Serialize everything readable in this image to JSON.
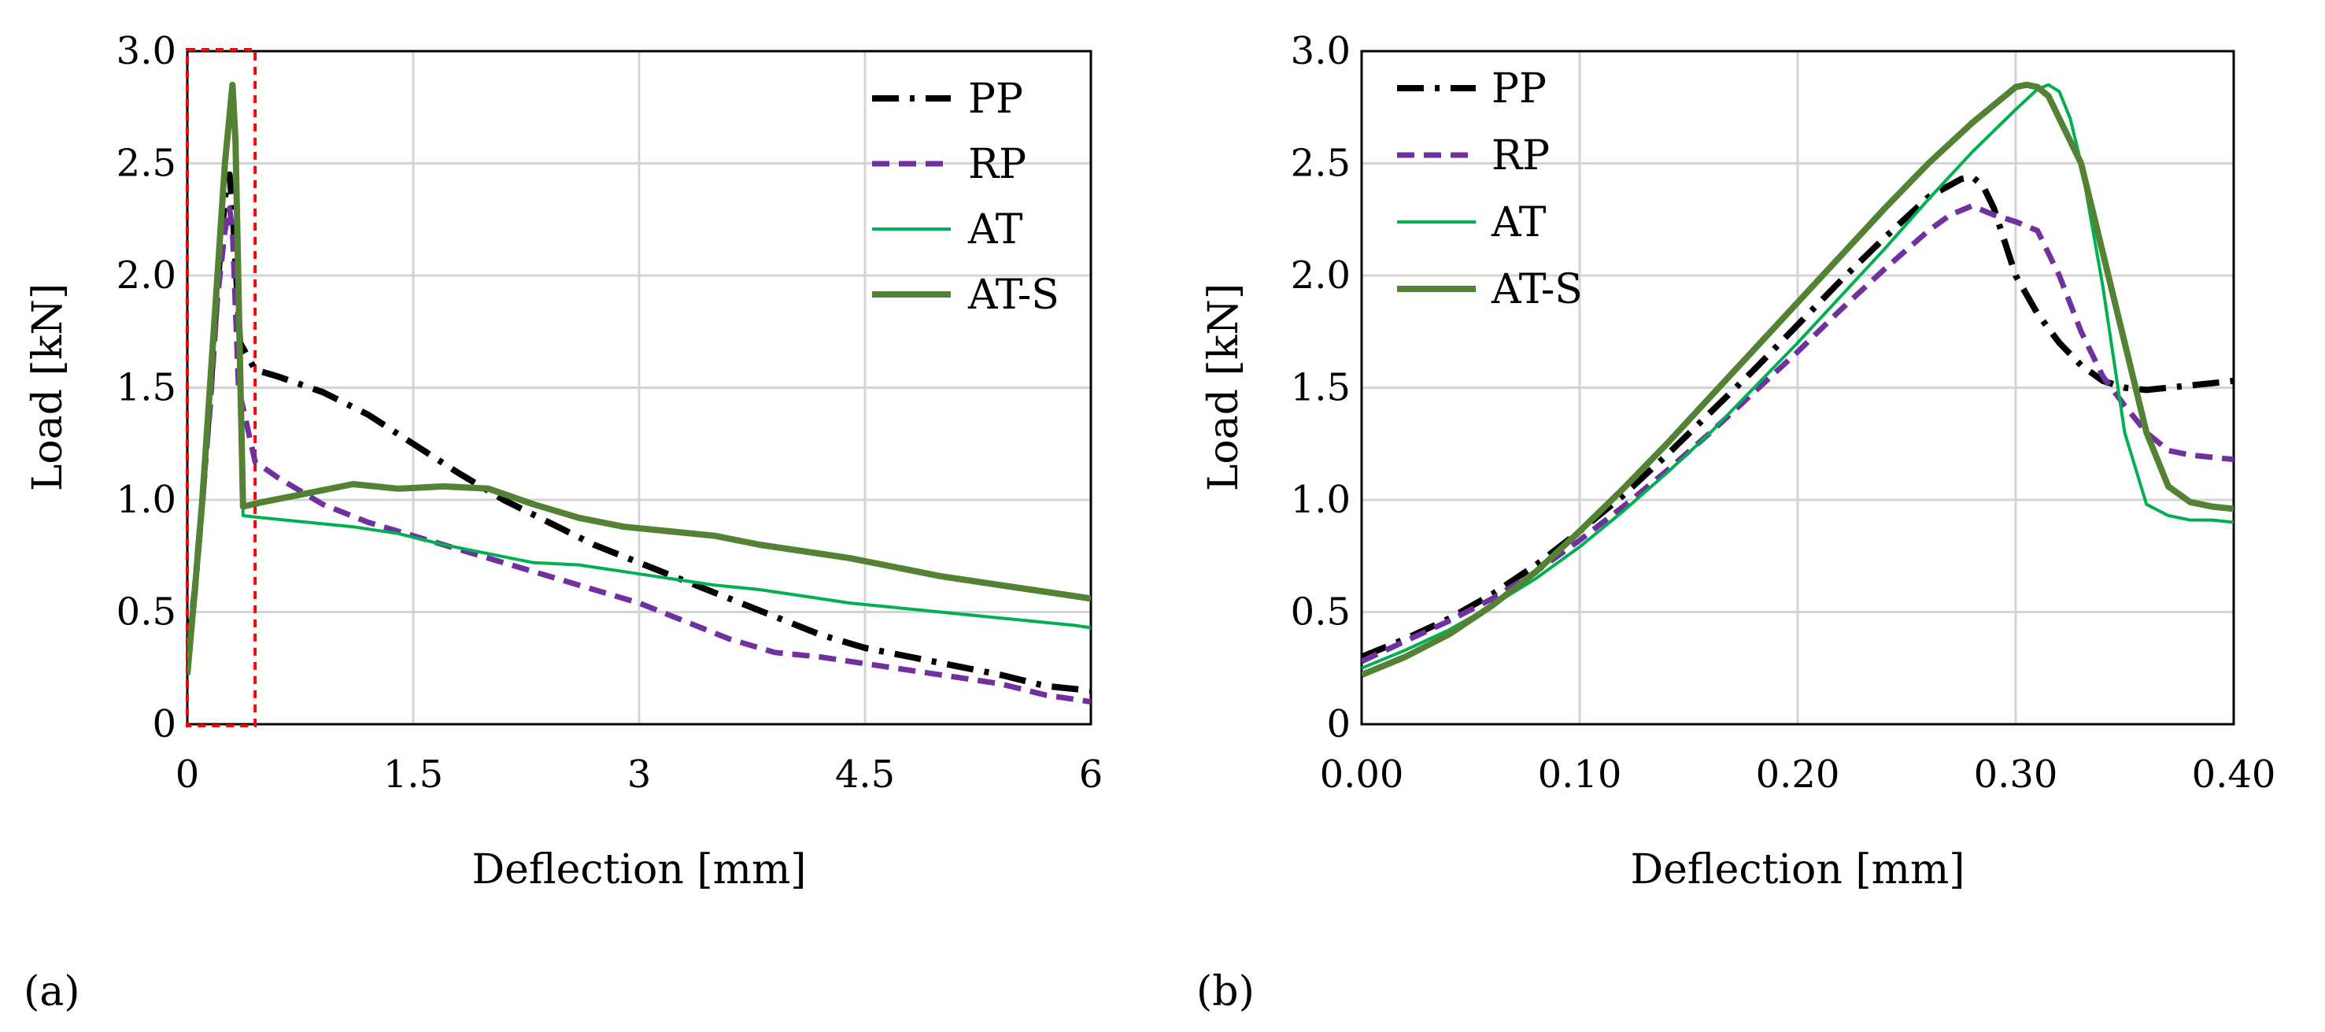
{
  "colors": {
    "PP": "#000000",
    "RP": "#7030a0",
    "AT": "#00b050",
    "AT-S": "#548235",
    "highlight": "#ff0000"
  },
  "chart_data": [
    {
      "type": "line",
      "panel_label": "(a)",
      "xlabel": "Deflection [mm]",
      "ylabel": "Load [kN]",
      "xlim": [
        0,
        6
      ],
      "ylim": [
        0,
        3
      ],
      "xticks": [
        0,
        1.5,
        3,
        4.5,
        6
      ],
      "xtick_labels": [
        "0",
        "1.5",
        "3",
        "4.5",
        "6"
      ],
      "yticks": [
        0,
        0.5,
        1,
        1.5,
        2,
        2.5,
        3
      ],
      "ytick_labels": [
        "0",
        "0.5",
        "1.0",
        "1.5",
        "2.0",
        "2.5",
        "3.0"
      ],
      "grid": true,
      "legend_position": "top-right",
      "highlight_box": {
        "x": [
          0,
          0.45
        ],
        "y": [
          0,
          3
        ]
      },
      "series": [
        {
          "name": "PP",
          "style": "dashdot",
          "x": [
            0,
            0.05,
            0.1,
            0.15,
            0.2,
            0.25,
            0.28,
            0.3,
            0.35,
            0.45,
            0.6,
            0.9,
            1.2,
            1.5,
            1.8,
            2.1,
            2.4,
            2.7,
            3.0,
            3.3,
            3.6,
            3.9,
            4.2,
            4.5,
            4.8,
            5.1,
            5.4,
            5.7,
            6.0
          ],
          "y": [
            0.28,
            0.6,
            1.0,
            1.45,
            1.95,
            2.35,
            2.45,
            2.3,
            1.7,
            1.58,
            1.55,
            1.48,
            1.38,
            1.25,
            1.12,
            1.0,
            0.9,
            0.8,
            0.72,
            0.64,
            0.56,
            0.48,
            0.4,
            0.34,
            0.3,
            0.26,
            0.22,
            0.17,
            0.15
          ]
        },
        {
          "name": "RP",
          "style": "dashed",
          "x": [
            0,
            0.05,
            0.1,
            0.15,
            0.2,
            0.25,
            0.28,
            0.3,
            0.34,
            0.45,
            0.6,
            0.9,
            1.2,
            1.5,
            1.8,
            2.1,
            2.4,
            2.7,
            3.0,
            3.3,
            3.6,
            3.9,
            4.2,
            4.5,
            4.8,
            5.1,
            5.4,
            5.7,
            6.0
          ],
          "y": [
            0.28,
            0.6,
            1.0,
            1.4,
            1.9,
            2.2,
            2.3,
            2.2,
            1.5,
            1.17,
            1.1,
            0.98,
            0.9,
            0.84,
            0.78,
            0.72,
            0.66,
            0.6,
            0.54,
            0.46,
            0.38,
            0.32,
            0.3,
            0.27,
            0.24,
            0.21,
            0.18,
            0.13,
            0.1
          ]
        },
        {
          "name": "AT",
          "style": "solid-thin",
          "x": [
            0,
            0.05,
            0.1,
            0.15,
            0.2,
            0.25,
            0.3,
            0.32,
            0.35,
            0.37,
            0.5,
            0.8,
            1.1,
            1.4,
            1.7,
            2.0,
            2.3,
            2.6,
            2.9,
            3.2,
            3.5,
            3.8,
            4.1,
            4.4,
            4.7,
            5.0,
            5.3,
            5.6,
            5.9,
            6.0
          ],
          "y": [
            0.25,
            0.6,
            1.0,
            1.5,
            2.0,
            2.5,
            2.85,
            2.6,
            1.6,
            0.93,
            0.92,
            0.9,
            0.88,
            0.85,
            0.8,
            0.76,
            0.72,
            0.71,
            0.68,
            0.65,
            0.62,
            0.6,
            0.57,
            0.54,
            0.52,
            0.5,
            0.48,
            0.46,
            0.44,
            0.43
          ]
        },
        {
          "name": "AT-S",
          "style": "solid",
          "x": [
            0,
            0.05,
            0.1,
            0.15,
            0.2,
            0.25,
            0.3,
            0.32,
            0.35,
            0.37,
            0.5,
            0.8,
            1.1,
            1.4,
            1.7,
            2.0,
            2.3,
            2.6,
            2.9,
            3.2,
            3.5,
            3.8,
            4.1,
            4.4,
            4.7,
            5.0,
            5.3,
            5.6,
            5.9,
            6.0
          ],
          "y": [
            0.22,
            0.6,
            1.0,
            1.5,
            2.0,
            2.5,
            2.85,
            2.6,
            1.6,
            0.97,
            0.99,
            1.03,
            1.07,
            1.05,
            1.06,
            1.05,
            0.98,
            0.92,
            0.88,
            0.86,
            0.84,
            0.8,
            0.77,
            0.74,
            0.7,
            0.66,
            0.63,
            0.6,
            0.57,
            0.56
          ]
        }
      ]
    },
    {
      "type": "line",
      "panel_label": "(b)",
      "xlabel": "Deflection [mm]",
      "ylabel": "Load [kN]",
      "xlim": [
        0,
        0.4
      ],
      "ylim": [
        0,
        3
      ],
      "xticks": [
        0,
        0.1,
        0.2,
        0.3,
        0.4
      ],
      "xtick_labels": [
        "0.00",
        "0.10",
        "0.20",
        "0.30",
        "0.40"
      ],
      "yticks": [
        0,
        0.5,
        1,
        1.5,
        2,
        2.5,
        3
      ],
      "ytick_labels": [
        "0",
        "0.5",
        "1.0",
        "1.5",
        "2.0",
        "2.5",
        "3.0"
      ],
      "grid": true,
      "legend_position": "top-left",
      "series": [
        {
          "name": "PP",
          "style": "dashdot",
          "x": [
            0,
            0.02,
            0.04,
            0.06,
            0.08,
            0.1,
            0.12,
            0.14,
            0.16,
            0.18,
            0.2,
            0.22,
            0.24,
            0.26,
            0.275,
            0.28,
            0.285,
            0.29,
            0.3,
            0.31,
            0.32,
            0.33,
            0.34,
            0.35,
            0.36,
            0.37,
            0.38,
            0.39,
            0.4
          ],
          "y": [
            0.3,
            0.38,
            0.47,
            0.58,
            0.71,
            0.86,
            1.02,
            1.2,
            1.39,
            1.58,
            1.78,
            1.98,
            2.17,
            2.35,
            2.43,
            2.44,
            2.4,
            2.3,
            2.0,
            1.83,
            1.7,
            1.6,
            1.53,
            1.5,
            1.49,
            1.5,
            1.51,
            1.52,
            1.53
          ]
        },
        {
          "name": "RP",
          "style": "dashed",
          "x": [
            0,
            0.02,
            0.04,
            0.06,
            0.08,
            0.1,
            0.12,
            0.14,
            0.16,
            0.18,
            0.2,
            0.22,
            0.24,
            0.26,
            0.27,
            0.28,
            0.29,
            0.3,
            0.31,
            0.32,
            0.33,
            0.34,
            0.35,
            0.36,
            0.37,
            0.38,
            0.39,
            0.4
          ],
          "y": [
            0.28,
            0.37,
            0.46,
            0.56,
            0.68,
            0.82,
            0.97,
            1.13,
            1.3,
            1.48,
            1.66,
            1.85,
            2.03,
            2.2,
            2.27,
            2.31,
            2.27,
            2.24,
            2.2,
            2.0,
            1.75,
            1.55,
            1.42,
            1.3,
            1.22,
            1.2,
            1.19,
            1.18
          ]
        },
        {
          "name": "AT",
          "style": "solid-thin",
          "x": [
            0,
            0.02,
            0.04,
            0.06,
            0.08,
            0.1,
            0.12,
            0.14,
            0.16,
            0.18,
            0.2,
            0.22,
            0.24,
            0.26,
            0.28,
            0.3,
            0.31,
            0.315,
            0.32,
            0.325,
            0.33,
            0.34,
            0.35,
            0.36,
            0.37,
            0.38,
            0.39,
            0.4
          ],
          "y": [
            0.25,
            0.33,
            0.42,
            0.53,
            0.65,
            0.79,
            0.95,
            1.12,
            1.3,
            1.5,
            1.7,
            1.91,
            2.12,
            2.34,
            2.55,
            2.74,
            2.83,
            2.85,
            2.82,
            2.7,
            2.5,
            1.95,
            1.3,
            0.98,
            0.93,
            0.91,
            0.91,
            0.9
          ]
        },
        {
          "name": "AT-S",
          "style": "solid",
          "x": [
            0,
            0.02,
            0.04,
            0.06,
            0.08,
            0.1,
            0.12,
            0.14,
            0.16,
            0.18,
            0.2,
            0.22,
            0.24,
            0.26,
            0.28,
            0.3,
            0.305,
            0.31,
            0.315,
            0.32,
            0.33,
            0.34,
            0.35,
            0.36,
            0.37,
            0.38,
            0.39,
            0.4
          ],
          "y": [
            0.22,
            0.3,
            0.4,
            0.53,
            0.68,
            0.86,
            1.05,
            1.25,
            1.46,
            1.67,
            1.88,
            2.09,
            2.3,
            2.5,
            2.68,
            2.84,
            2.85,
            2.84,
            2.8,
            2.7,
            2.5,
            2.1,
            1.7,
            1.3,
            1.06,
            0.99,
            0.97,
            0.96
          ]
        }
      ]
    }
  ]
}
